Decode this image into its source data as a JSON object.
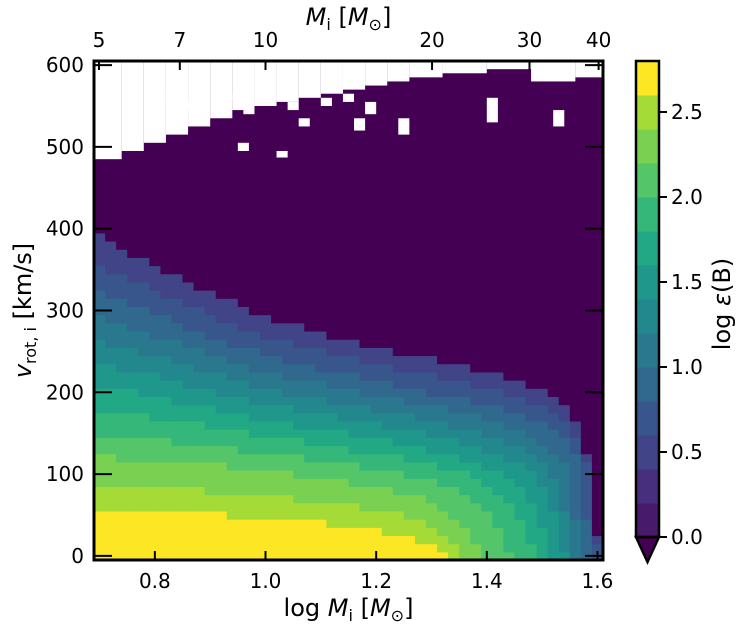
{
  "chart_data": {
    "type": "heatmap",
    "xlabel": "log M_i [M_⊙]",
    "xlabel_parts": {
      "pre": "log ",
      "var": "M",
      "sub": "i",
      "post": " [",
      "unit": "M",
      "unit_sub": "⊙",
      "close": "]"
    },
    "top_label_parts": {
      "var": "M",
      "sub": "i",
      "post": " [",
      "unit": "M",
      "unit_sub": "⊙",
      "close": "]"
    },
    "ylabel_parts": {
      "var": "v",
      "sub": "rot, i",
      "post": " [km/s]"
    },
    "colorbar_label_parts": {
      "pre": "log ",
      "var": "ε",
      "post": "(B)"
    },
    "xlim": [
      0.69,
      1.61
    ],
    "ylim": [
      -5,
      605
    ],
    "x_ticks": [
      {
        "value": 0.8,
        "label": "0.8"
      },
      {
        "value": 1.0,
        "label": "1.0"
      },
      {
        "value": 1.2,
        "label": "1.2"
      },
      {
        "value": 1.4,
        "label": "1.4"
      },
      {
        "value": 1.6,
        "label": "1.6"
      }
    ],
    "top_ticks": [
      {
        "value": 0.69897,
        "label": "5"
      },
      {
        "value": 0.845098,
        "label": "7"
      },
      {
        "value": 1.0,
        "label": "10"
      },
      {
        "value": 1.30103,
        "label": "20"
      },
      {
        "value": 1.477121,
        "label": "30"
      },
      {
        "value": 1.60206,
        "label": "40"
      }
    ],
    "y_ticks": [
      {
        "value": 0,
        "label": "0"
      },
      {
        "value": 100,
        "label": "100"
      },
      {
        "value": 200,
        "label": "200"
      },
      {
        "value": 300,
        "label": "300"
      },
      {
        "value": 400,
        "label": "400"
      },
      {
        "value": 500,
        "label": "500"
      },
      {
        "value": 600,
        "label": "600"
      }
    ],
    "colorbar": {
      "min": 0.0,
      "max": 2.8,
      "levels": 14,
      "extend": "min",
      "colors": [
        "#440154",
        "#481a6c",
        "#472f7d",
        "#414487",
        "#39568c",
        "#31688e",
        "#2a788e",
        "#23888e",
        "#1f988b",
        "#22a884",
        "#35b779",
        "#54c568",
        "#7ad151",
        "#a5db36",
        "#fde725"
      ],
      "ticks": [
        {
          "value": 0.0,
          "label": "0.0"
        },
        {
          "value": 0.5,
          "label": "0.5"
        },
        {
          "value": 1.0,
          "label": "1.0"
        },
        {
          "value": 1.5,
          "label": "1.5"
        },
        {
          "value": 2.0,
          "label": "2.0"
        },
        {
          "value": 2.5,
          "label": "2.5"
        }
      ]
    },
    "grid": {
      "x_start": 0.69,
      "x_step": 0.02,
      "nx": 46,
      "y_start": -5,
      "y_step": 10,
      "ny": 61
    },
    "contour_boundaries": [
      {
        "level": 2.6,
        "v_at": [
          [
            0.69,
            57
          ],
          [
            0.8,
            55
          ],
          [
            0.9,
            52
          ],
          [
            1.0,
            47
          ],
          [
            1.1,
            41
          ],
          [
            1.2,
            32
          ],
          [
            1.25,
            25
          ],
          [
            1.28,
            18
          ],
          [
            1.31,
            12
          ],
          [
            1.33,
            5
          ],
          [
            1.34,
            0
          ]
        ]
      },
      {
        "level": 2.4,
        "v_at": [
          [
            0.69,
            87
          ],
          [
            0.8,
            84
          ],
          [
            0.9,
            80
          ],
          [
            1.0,
            74
          ],
          [
            1.1,
            66
          ],
          [
            1.2,
            57
          ],
          [
            1.25,
            50
          ],
          [
            1.28,
            43
          ],
          [
            1.3,
            35
          ],
          [
            1.32,
            27
          ],
          [
            1.34,
            18
          ],
          [
            1.35,
            10
          ],
          [
            1.36,
            0
          ]
        ]
      },
      {
        "level": 2.2,
        "v_at": [
          [
            0.69,
            122
          ],
          [
            0.8,
            117
          ],
          [
            0.9,
            112
          ],
          [
            1.0,
            104
          ],
          [
            1.1,
            95
          ],
          [
            1.2,
            85
          ],
          [
            1.25,
            78
          ],
          [
            1.3,
            66
          ],
          [
            1.33,
            55
          ],
          [
            1.35,
            44
          ],
          [
            1.37,
            30
          ],
          [
            1.38,
            18
          ],
          [
            1.39,
            5
          ],
          [
            1.4,
            0
          ]
        ]
      },
      {
        "level": 2.0,
        "v_at": [
          [
            0.69,
            150
          ],
          [
            0.8,
            143
          ],
          [
            0.9,
            135
          ],
          [
            1.0,
            126
          ],
          [
            1.1,
            117
          ],
          [
            1.2,
            107
          ],
          [
            1.25,
            101
          ],
          [
            1.3,
            93
          ],
          [
            1.35,
            80
          ],
          [
            1.38,
            66
          ],
          [
            1.4,
            55
          ],
          [
            1.42,
            40
          ],
          [
            1.43,
            25
          ],
          [
            1.44,
            10
          ],
          [
            1.45,
            0
          ]
        ]
      },
      {
        "level": 1.8,
        "v_at": [
          [
            0.69,
            180
          ],
          [
            0.8,
            170
          ],
          [
            0.9,
            158
          ],
          [
            1.0,
            146
          ],
          [
            1.1,
            136
          ],
          [
            1.2,
            125
          ],
          [
            1.25,
            119
          ],
          [
            1.3,
            112
          ],
          [
            1.35,
            103
          ],
          [
            1.4,
            90
          ],
          [
            1.43,
            75
          ],
          [
            1.45,
            60
          ],
          [
            1.46,
            45
          ],
          [
            1.47,
            30
          ],
          [
            1.48,
            15
          ],
          [
            1.49,
            0
          ]
        ]
      },
      {
        "level": 1.6,
        "v_at": [
          [
            0.69,
            210
          ],
          [
            0.8,
            195
          ],
          [
            0.9,
            180
          ],
          [
            1.0,
            166
          ],
          [
            1.1,
            155
          ],
          [
            1.2,
            143
          ],
          [
            1.25,
            137
          ],
          [
            1.3,
            130
          ],
          [
            1.35,
            121
          ],
          [
            1.4,
            110
          ],
          [
            1.44,
            97
          ],
          [
            1.47,
            80
          ],
          [
            1.48,
            68
          ],
          [
            1.49,
            55
          ],
          [
            1.5,
            40
          ],
          [
            1.505,
            25
          ],
          [
            1.51,
            8
          ],
          [
            1.515,
            0
          ]
        ]
      },
      {
        "level": 1.4,
        "v_at": [
          [
            0.69,
            238
          ],
          [
            0.8,
            220
          ],
          [
            0.9,
            202
          ],
          [
            1.0,
            186
          ],
          [
            1.1,
            173
          ],
          [
            1.2,
            161
          ],
          [
            1.25,
            155
          ],
          [
            1.3,
            148
          ],
          [
            1.35,
            140
          ],
          [
            1.4,
            130
          ],
          [
            1.45,
            115
          ],
          [
            1.48,
            103
          ],
          [
            1.5,
            88
          ],
          [
            1.51,
            72
          ],
          [
            1.52,
            55
          ],
          [
            1.525,
            40
          ],
          [
            1.53,
            25
          ],
          [
            1.535,
            8
          ],
          [
            1.54,
            0
          ]
        ]
      },
      {
        "level": 1.2,
        "v_at": [
          [
            0.69,
            265
          ],
          [
            0.8,
            245
          ],
          [
            0.9,
            224
          ],
          [
            1.0,
            205
          ],
          [
            1.1,
            191
          ],
          [
            1.2,
            178
          ],
          [
            1.25,
            172
          ],
          [
            1.3,
            166
          ],
          [
            1.35,
            158
          ],
          [
            1.4,
            150
          ],
          [
            1.45,
            137
          ],
          [
            1.48,
            126
          ],
          [
            1.5,
            115
          ],
          [
            1.52,
            100
          ],
          [
            1.53,
            85
          ],
          [
            1.535,
            70
          ],
          [
            1.54,
            55
          ],
          [
            1.545,
            40
          ],
          [
            1.55,
            20
          ],
          [
            1.555,
            0
          ]
        ]
      },
      {
        "level": 1.0,
        "v_at": [
          [
            0.69,
            295
          ],
          [
            0.8,
            270
          ],
          [
            0.9,
            246
          ],
          [
            1.0,
            225
          ],
          [
            1.1,
            210
          ],
          [
            1.2,
            196
          ],
          [
            1.25,
            189
          ],
          [
            1.3,
            183
          ],
          [
            1.35,
            176
          ],
          [
            1.4,
            168
          ],
          [
            1.45,
            156
          ],
          [
            1.48,
            146
          ],
          [
            1.51,
            135
          ],
          [
            1.53,
            122
          ],
          [
            1.54,
            110
          ],
          [
            1.545,
            95
          ],
          [
            1.55,
            80
          ],
          [
            1.555,
            65
          ],
          [
            1.56,
            45
          ],
          [
            1.565,
            20
          ],
          [
            1.57,
            0
          ]
        ]
      },
      {
        "level": 0.8,
        "v_at": [
          [
            0.69,
            325
          ],
          [
            0.8,
            296
          ],
          [
            0.9,
            268
          ],
          [
            1.0,
            246
          ],
          [
            1.1,
            229
          ],
          [
            1.2,
            215
          ],
          [
            1.25,
            207
          ],
          [
            1.3,
            200
          ],
          [
            1.35,
            194
          ],
          [
            1.4,
            186
          ],
          [
            1.45,
            176
          ],
          [
            1.48,
            167
          ],
          [
            1.51,
            157
          ],
          [
            1.53,
            148
          ],
          [
            1.55,
            135
          ],
          [
            1.56,
            120
          ],
          [
            1.565,
            105
          ],
          [
            1.57,
            90
          ],
          [
            1.575,
            70
          ],
          [
            1.58,
            45
          ],
          [
            1.585,
            20
          ],
          [
            1.59,
            0
          ]
        ]
      },
      {
        "level": 0.6,
        "v_at": [
          [
            0.69,
            358
          ],
          [
            0.8,
            325
          ],
          [
            0.9,
            295
          ],
          [
            1.0,
            270
          ],
          [
            1.1,
            250
          ],
          [
            1.2,
            236
          ],
          [
            1.25,
            228
          ],
          [
            1.3,
            221
          ],
          [
            1.35,
            214
          ],
          [
            1.4,
            206
          ],
          [
            1.45,
            196
          ],
          [
            1.48,
            188
          ],
          [
            1.51,
            178
          ],
          [
            1.53,
            170
          ],
          [
            1.55,
            158
          ],
          [
            1.565,
            145
          ],
          [
            1.575,
            128
          ],
          [
            1.58,
            112
          ],
          [
            1.585,
            92
          ],
          [
            1.59,
            70
          ],
          [
            1.595,
            45
          ],
          [
            1.6,
            15
          ],
          [
            1.605,
            0
          ]
        ]
      },
      {
        "level": 0.4,
        "v_at": [
          [
            0.69,
            395
          ],
          [
            0.8,
            355
          ],
          [
            0.9,
            322
          ],
          [
            1.0,
            293
          ],
          [
            1.1,
            272
          ],
          [
            1.2,
            256
          ],
          [
            1.25,
            248
          ],
          [
            1.3,
            241
          ],
          [
            1.35,
            234
          ],
          [
            1.4,
            226
          ],
          [
            1.45,
            216
          ],
          [
            1.48,
            208
          ],
          [
            1.51,
            198
          ],
          [
            1.53,
            189
          ],
          [
            1.55,
            175
          ],
          [
            1.565,
            160
          ],
          [
            1.575,
            140
          ],
          [
            1.58,
            120
          ],
          [
            1.585,
            98
          ],
          [
            1.59,
            75
          ],
          [
            1.595,
            48
          ],
          [
            1.6,
            20
          ],
          [
            1.605,
            0
          ]
        ]
      }
    ],
    "missing_region_note_free": true,
    "missing_rects": [
      [
        0.69,
        0.74,
        485,
        605
      ],
      [
        0.74,
        0.78,
        495,
        605
      ],
      [
        0.78,
        0.82,
        505,
        605
      ],
      [
        0.82,
        0.86,
        515,
        605
      ],
      [
        0.86,
        0.9,
        525,
        605
      ],
      [
        0.9,
        0.94,
        535,
        605
      ],
      [
        0.94,
        0.98,
        545,
        605
      ],
      [
        0.98,
        1.02,
        550,
        605
      ],
      [
        1.02,
        1.06,
        555,
        605
      ],
      [
        1.06,
        1.1,
        560,
        605
      ],
      [
        1.1,
        1.14,
        565,
        605
      ],
      [
        1.14,
        1.18,
        570,
        605
      ],
      [
        1.18,
        1.22,
        575,
        605
      ],
      [
        1.22,
        1.26,
        580,
        605
      ],
      [
        1.26,
        1.32,
        585,
        605
      ],
      [
        1.32,
        1.4,
        590,
        605
      ],
      [
        1.4,
        1.48,
        595,
        605
      ],
      [
        1.48,
        1.56,
        580,
        605
      ],
      [
        1.56,
        1.61,
        585,
        605
      ]
    ],
    "missing_specks": [
      [
        0.82,
        0.84,
        555,
        565
      ],
      [
        0.86,
        0.88,
        545,
        555
      ],
      [
        0.94,
        0.96,
        555,
        565
      ],
      [
        0.96,
        0.98,
        540,
        550
      ],
      [
        1.04,
        1.06,
        545,
        555
      ],
      [
        1.06,
        1.08,
        525,
        535
      ],
      [
        1.1,
        1.12,
        550,
        560
      ],
      [
        1.14,
        1.16,
        555,
        565
      ],
      [
        1.16,
        1.18,
        520,
        535
      ],
      [
        1.18,
        1.2,
        540,
        555
      ],
      [
        1.24,
        1.26,
        515,
        535
      ],
      [
        1.52,
        1.54,
        525,
        545
      ],
      [
        0.95,
        0.97,
        495,
        505
      ],
      [
        1.02,
        1.04,
        487,
        495
      ],
      [
        1.4,
        1.42,
        530,
        560
      ]
    ]
  }
}
